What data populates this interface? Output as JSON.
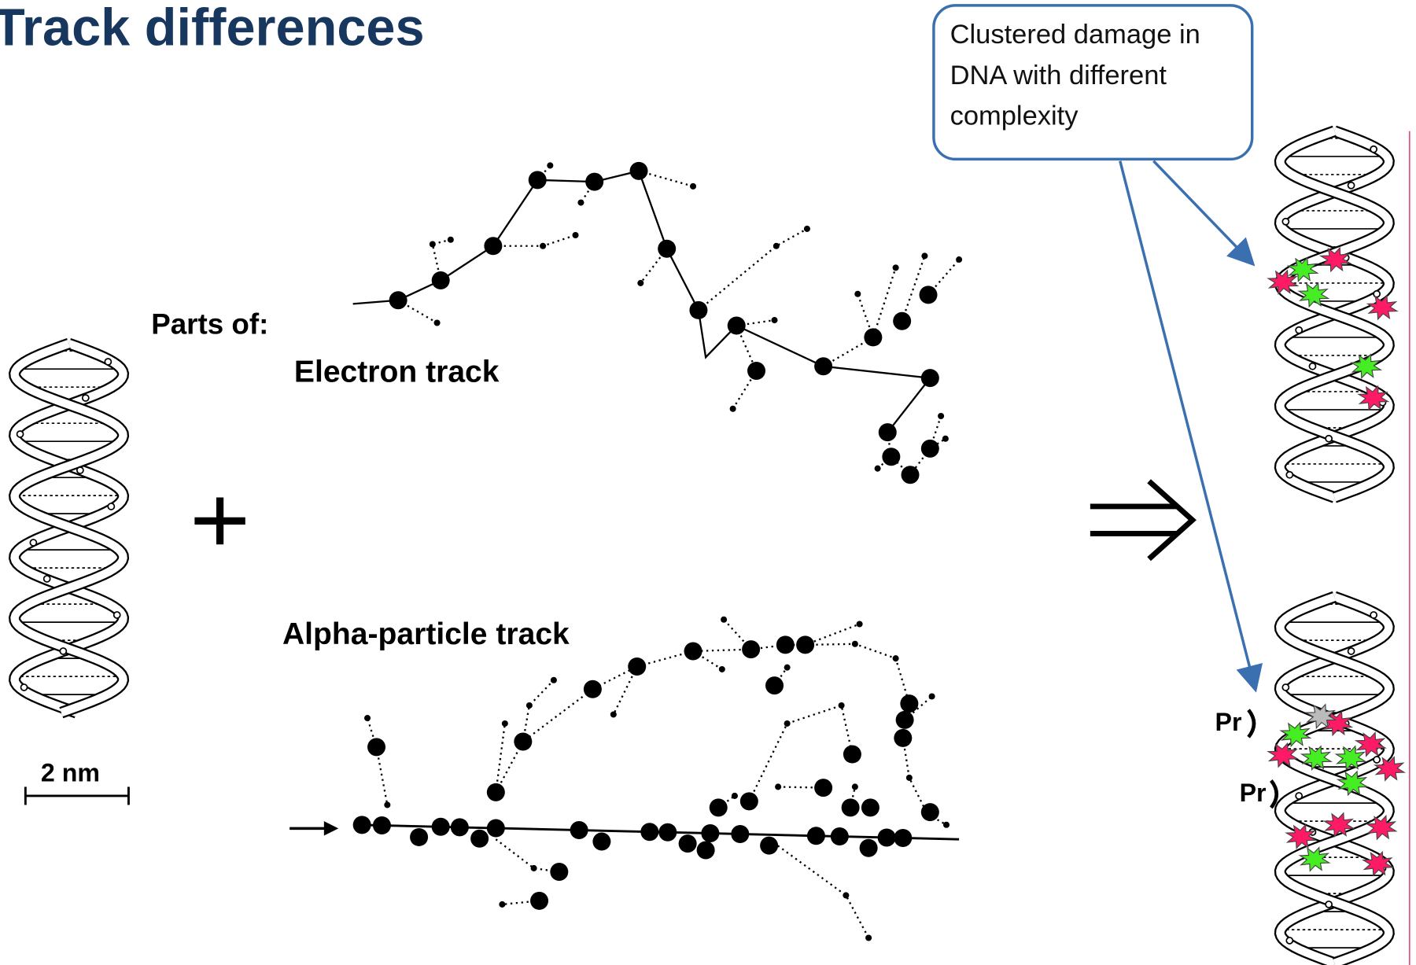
{
  "header": {
    "title": "Track differences"
  },
  "callout": {
    "lines": [
      "Clustered damage in",
      "DNA with different",
      "complexity"
    ]
  },
  "labels": {
    "parts_of": "Parts of:",
    "electron_track": "Electron track",
    "alpha_track": "Alpha-particle track",
    "scale": "2 nm",
    "protein_top": "Pr",
    "protein_bottom": "Pr"
  }
}
